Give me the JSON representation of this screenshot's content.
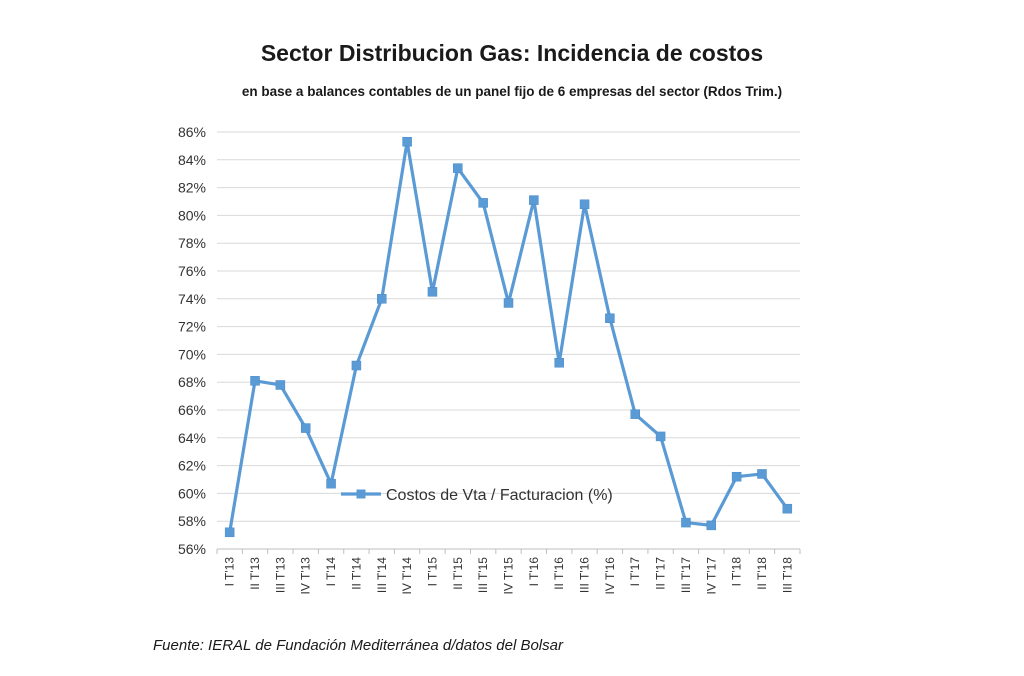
{
  "chart_data": {
    "type": "line",
    "title": "Sector Distribucion Gas: Incidencia de costos",
    "subtitle": "en base a balances contables de un panel fijo de 6 empresas del sector (Rdos Trim.)",
    "source": "Fuente: IERAL de Fundación Mediterránea d/datos del Bolsar",
    "categories": [
      "I T'13",
      "II T'13",
      "III T'13",
      "IV T'13",
      "I T'14",
      "II T'14",
      "III T'14",
      "IV T'14",
      "I T'15",
      "II T'15",
      "III T'15",
      "IV T'15",
      "I T'16",
      "II T'16",
      "III T'16",
      "IV T'16",
      "I T'17",
      "II T'17",
      "III T'17",
      "IV T'17",
      "I T'18",
      "II T'18",
      "III T'18"
    ],
    "series": [
      {
        "name": "Costos de Vta / Facturacion (%)",
        "color": "#5b9bd5",
        "values": [
          57.2,
          68.1,
          67.8,
          64.7,
          60.7,
          69.2,
          74.0,
          85.3,
          74.5,
          83.4,
          80.9,
          73.7,
          81.1,
          69.4,
          80.8,
          72.6,
          65.7,
          64.1,
          57.9,
          57.7,
          61.2,
          61.4,
          58.9
        ]
      }
    ],
    "yticks": [
      "56%",
      "58%",
      "60%",
      "62%",
      "64%",
      "66%",
      "68%",
      "70%",
      "72%",
      "74%",
      "76%",
      "78%",
      "80%",
      "82%",
      "84%",
      "86%"
    ],
    "ylim": [
      56,
      86
    ],
    "ytick_step": 2,
    "grid": true,
    "legend_position": "inside-lower-left"
  }
}
